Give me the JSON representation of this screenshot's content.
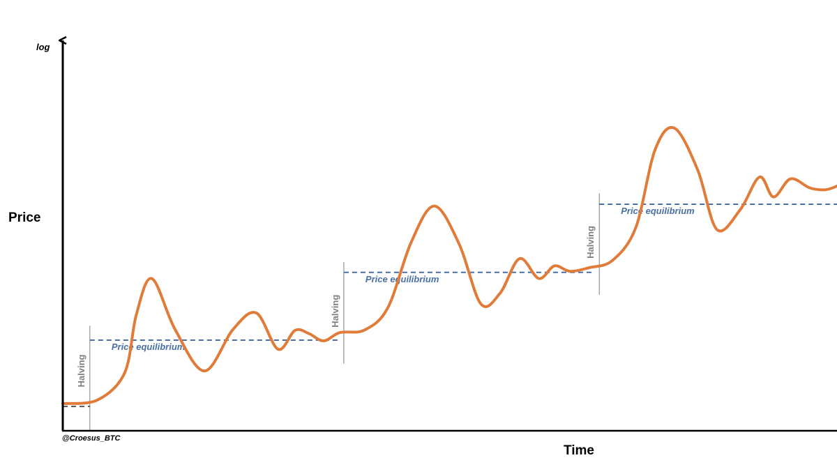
{
  "chart_data": {
    "type": "line",
    "title": "",
    "xlabel": "Time",
    "ylabel": "Price",
    "y_scale_label": "log",
    "y_scale": "log",
    "grid": false,
    "legend": "none",
    "colors": {
      "price_line": "#e07b39",
      "equilibrium": "#4a6fa5",
      "equilibrium_label": "#4a6fa5",
      "halving": "#808080",
      "axis": "#000000",
      "baseline": "#555555"
    },
    "halving_label": "Halving",
    "equilibrium_label": "Price equilibrium",
    "credit": "@Croesus_BTC",
    "series": [
      {
        "values": [
          [
            0.0,
            0.075
          ],
          [
            0.045,
            0.085
          ],
          [
            0.08,
            0.16
          ],
          [
            0.095,
            0.32
          ],
          [
            0.115,
            0.42
          ],
          [
            0.145,
            0.28
          ],
          [
            0.183,
            0.165
          ],
          [
            0.22,
            0.28
          ],
          [
            0.25,
            0.325
          ],
          [
            0.278,
            0.225
          ],
          [
            0.3,
            0.277
          ],
          [
            0.318,
            0.268
          ],
          [
            0.337,
            0.248
          ],
          [
            0.358,
            0.271
          ],
          [
            0.39,
            0.278
          ],
          [
            0.42,
            0.34
          ],
          [
            0.45,
            0.52
          ],
          [
            0.48,
            0.62
          ],
          [
            0.512,
            0.515
          ],
          [
            0.54,
            0.35
          ],
          [
            0.565,
            0.38
          ],
          [
            0.59,
            0.475
          ],
          [
            0.615,
            0.42
          ],
          [
            0.635,
            0.455
          ],
          [
            0.655,
            0.44
          ],
          [
            0.68,
            0.45
          ],
          [
            0.71,
            0.47
          ],
          [
            0.74,
            0.56
          ],
          [
            0.765,
            0.775
          ],
          [
            0.79,
            0.835
          ],
          [
            0.82,
            0.72
          ],
          [
            0.845,
            0.555
          ],
          [
            0.875,
            0.61
          ],
          [
            0.9,
            0.7
          ],
          [
            0.918,
            0.645
          ],
          [
            0.94,
            0.695
          ],
          [
            0.965,
            0.67
          ],
          [
            0.985,
            0.665
          ],
          [
            1.0,
            0.675
          ]
        ]
      }
    ],
    "halvings": [
      {
        "x": 0.035,
        "y_bottom": 0.0,
        "y_top": 0.29
      },
      {
        "x": 0.363,
        "y_bottom": 0.185,
        "y_top": 0.465
      },
      {
        "x": 0.693,
        "y_bottom": 0.375,
        "y_top": 0.655
      }
    ],
    "equilibria": [
      {
        "x_start": 0.0,
        "x_end": 0.035,
        "y": 0.067,
        "labeled": false
      },
      {
        "x_start": 0.035,
        "x_end": 0.355,
        "y": 0.25,
        "labeled": true
      },
      {
        "x_start": 0.363,
        "x_end": 0.685,
        "y": 0.437,
        "labeled": true
      },
      {
        "x_start": 0.693,
        "x_end": 1.0,
        "y": 0.625,
        "labeled": true
      }
    ]
  }
}
